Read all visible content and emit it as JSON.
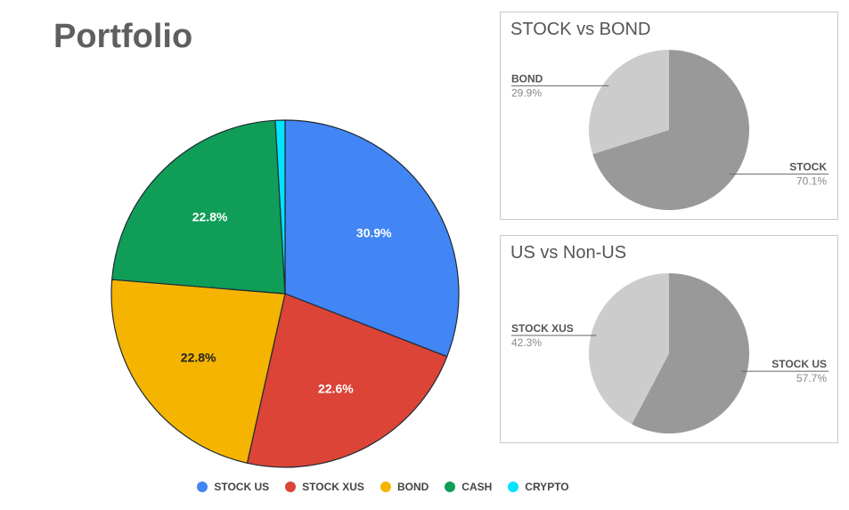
{
  "page": {
    "title": "Portfolio"
  },
  "chart_data": [
    {
      "type": "pie",
      "title": "",
      "categories": [
        "STOCK US",
        "STOCK XUS",
        "BOND",
        "CASH",
        "CRYPTO"
      ],
      "values": [
        30.9,
        22.6,
        22.8,
        22.8,
        0.9
      ],
      "labels": [
        "30.9%",
        "22.6%",
        "22.8%",
        "22.8%",
        ""
      ],
      "colors": [
        "#4285f4",
        "#db4437",
        "#f4b400",
        "#0f9d58",
        "#00e5ff"
      ],
      "legend": "bottom"
    },
    {
      "type": "pie",
      "title": "STOCK vs BOND",
      "categories": [
        "STOCK",
        "BOND"
      ],
      "values": [
        70.1,
        29.9
      ],
      "labels": [
        "70.1%",
        "29.9%"
      ],
      "colors": [
        "#999999",
        "#cccccc"
      ]
    },
    {
      "type": "pie",
      "title": "US vs Non-US",
      "categories": [
        "STOCK US",
        "STOCK XUS"
      ],
      "values": [
        57.7,
        42.3
      ],
      "labels": [
        "57.7%",
        "42.3%"
      ],
      "colors": [
        "#999999",
        "#cccccc"
      ]
    }
  ]
}
